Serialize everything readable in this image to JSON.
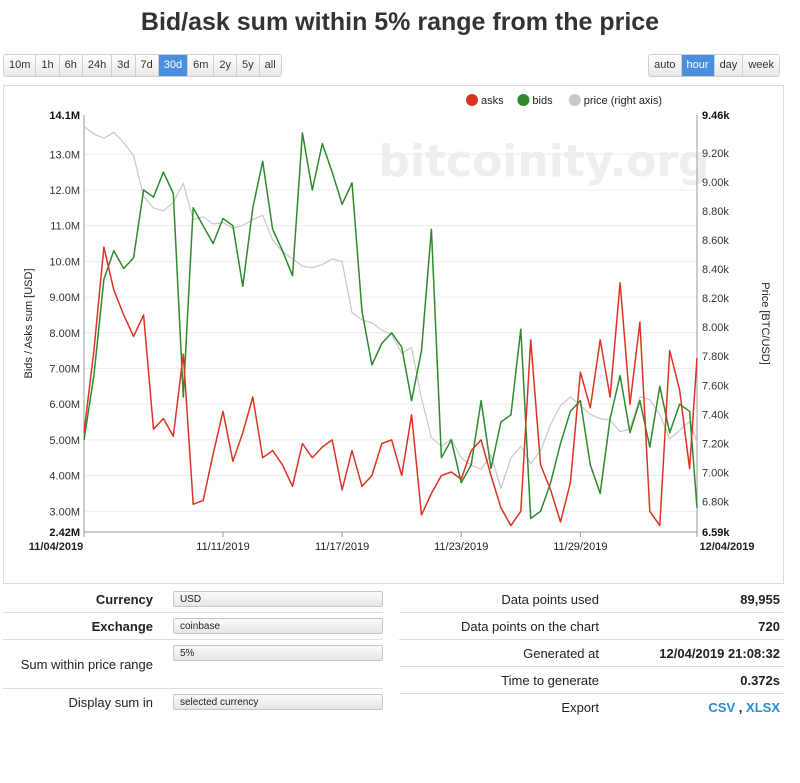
{
  "page": {
    "title": "Bid/ask sum within 5% range from the price"
  },
  "range_buttons": [
    {
      "label": "10m",
      "active": false
    },
    {
      "label": "1h",
      "active": false
    },
    {
      "label": "6h",
      "active": false
    },
    {
      "label": "24h",
      "active": false
    },
    {
      "label": "3d",
      "active": false
    },
    {
      "label": "7d",
      "active": false
    },
    {
      "label": "30d",
      "active": true
    },
    {
      "label": "6m",
      "active": false
    },
    {
      "label": "2y",
      "active": false
    },
    {
      "label": "5y",
      "active": false
    },
    {
      "label": "all",
      "active": false
    }
  ],
  "grouping_buttons": [
    {
      "label": "auto",
      "active": false
    },
    {
      "label": "hour",
      "active": true
    },
    {
      "label": "day",
      "active": false
    },
    {
      "label": "week",
      "active": false
    }
  ],
  "chart_data": {
    "type": "line",
    "watermark": "bitcoinity.org",
    "ylabel_left": "Bids / Asks sum [USD]",
    "ylabel_right": "Price [BTC/USD]",
    "left_axis": {
      "min": 2420000,
      "max": 14100000,
      "ticks": [
        3000000,
        4000000,
        5000000,
        6000000,
        7000000,
        8000000,
        9000000,
        10000000,
        11000000,
        12000000,
        13000000
      ],
      "tick_labels": [
        "3.00M",
        "4.00M",
        "5.00M",
        "6.00M",
        "7.00M",
        "8.00M",
        "9.00M",
        "10.0M",
        "11.0M",
        "12.0M",
        "13.0M"
      ],
      "min_label": "2.42M",
      "max_label": "14.1M"
    },
    "right_axis": {
      "min": 6590,
      "max": 9460,
      "ticks": [
        6800,
        7000,
        7200,
        7400,
        7600,
        7800,
        8000,
        8200,
        8400,
        8600,
        8800,
        9000,
        9200
      ],
      "tick_labels": [
        "6.80k",
        "7.00k",
        "7.20k",
        "7.40k",
        "7.60k",
        "7.80k",
        "8.00k",
        "8.20k",
        "8.40k",
        "8.60k",
        "8.80k",
        "9.00k",
        "9.20k"
      ],
      "min_label": "6.59k",
      "max_label": "9.46k"
    },
    "x_axis": {
      "start": "2019-11-04T00:00",
      "end": "2019-12-04T21:00",
      "tick_labels": [
        "11/04/2019",
        "11/11/2019",
        "11/17/2019",
        "11/23/2019",
        "11/29/2019",
        "12/04/2019"
      ],
      "tick_days": [
        0,
        7,
        13,
        19,
        25,
        30.875
      ]
    },
    "legend": {
      "position": "top-right"
    },
    "series": [
      {
        "name": "asks",
        "color": "#dd3322",
        "axis": "left",
        "unit": "M USD",
        "t_days": [
          0,
          0.5,
          1,
          1.5,
          2,
          2.5,
          3,
          3.5,
          4,
          4.5,
          5,
          5.5,
          6,
          6.5,
          7,
          7.5,
          8,
          8.5,
          9,
          9.5,
          10,
          10.5,
          11,
          11.5,
          12,
          12.5,
          13,
          13.5,
          14,
          14.5,
          15,
          15.5,
          16,
          16.5,
          17,
          17.5,
          18,
          18.5,
          19,
          19.5,
          20,
          20.5,
          21,
          21.5,
          22,
          22.5,
          23,
          23.5,
          24,
          24.5,
          25,
          25.5,
          26,
          26.5,
          27,
          27.5,
          28,
          28.5,
          29,
          29.5,
          30,
          30.5,
          30.875
        ],
        "values": [
          5.2,
          7.5,
          10.4,
          9.2,
          8.5,
          7.9,
          8.5,
          5.3,
          5.6,
          5.1,
          7.4,
          3.2,
          3.3,
          4.6,
          5.8,
          4.4,
          5.2,
          6.2,
          4.5,
          4.7,
          4.3,
          3.7,
          4.9,
          4.5,
          4.8,
          5.0,
          3.6,
          4.7,
          3.7,
          4.0,
          4.9,
          5.0,
          4.0,
          5.7,
          2.9,
          3.5,
          4.0,
          4.1,
          3.9,
          4.7,
          5.0,
          4.0,
          3.1,
          2.6,
          3.0,
          7.8,
          4.3,
          3.6,
          2.7,
          3.8,
          6.9,
          5.9,
          7.8,
          6.2,
          9.4,
          6.0,
          8.3,
          3.0,
          2.6,
          7.5,
          6.4,
          4.2,
          7.3
        ]
      },
      {
        "name": "bids",
        "color": "#2d8a2d",
        "axis": "left",
        "unit": "M USD",
        "t_days": [
          0,
          0.5,
          1,
          1.5,
          2,
          2.5,
          3,
          3.5,
          4,
          4.5,
          5,
          5.5,
          6,
          6.5,
          7,
          7.5,
          8,
          8.5,
          9,
          9.5,
          10,
          10.5,
          11,
          11.5,
          12,
          12.5,
          13,
          13.5,
          14,
          14.5,
          15,
          15.5,
          16,
          16.5,
          17,
          17.5,
          18,
          18.5,
          19,
          19.5,
          20,
          20.5,
          21,
          21.5,
          22,
          22.5,
          23,
          23.5,
          24,
          24.5,
          25,
          25.5,
          26,
          26.5,
          27,
          27.5,
          28,
          28.5,
          29,
          29.5,
          30,
          30.5,
          30.875
        ],
        "values": [
          5.0,
          6.8,
          9.5,
          10.3,
          9.8,
          10.1,
          12.0,
          11.8,
          12.5,
          11.9,
          6.2,
          11.5,
          11.0,
          10.5,
          11.2,
          11.0,
          9.3,
          11.5,
          12.8,
          10.9,
          10.3,
          9.6,
          13.6,
          12.0,
          13.3,
          12.5,
          11.6,
          12.2,
          8.6,
          7.1,
          7.7,
          8.0,
          7.6,
          6.1,
          7.5,
          10.9,
          4.5,
          5.0,
          3.8,
          4.3,
          6.1,
          4.2,
          5.5,
          5.7,
          8.1,
          2.8,
          3.0,
          3.8,
          4.9,
          5.8,
          6.1,
          4.3,
          3.5,
          5.6,
          6.8,
          5.2,
          6.1,
          4.8,
          6.5,
          5.2,
          6.0,
          5.8,
          3.1
        ]
      },
      {
        "name": "price (right axis)",
        "color": "#c8c8c8",
        "axis": "right",
        "unit": "USD",
        "t_days": [
          0,
          0.5,
          1,
          1.5,
          2,
          2.5,
          3,
          3.5,
          4,
          4.5,
          5,
          5.5,
          6,
          6.5,
          7,
          7.5,
          8,
          8.5,
          9,
          9.5,
          10,
          10.5,
          11,
          11.5,
          12,
          12.5,
          13,
          13.5,
          14,
          14.5,
          15,
          15.5,
          16,
          16.5,
          17,
          17.5,
          18,
          18.5,
          19,
          19.5,
          20,
          20.5,
          21,
          21.5,
          22,
          22.5,
          23,
          23.5,
          24,
          24.5,
          25,
          25.5,
          26,
          26.5,
          27,
          27.5,
          28,
          28.5,
          29,
          29.5,
          30,
          30.5,
          30.875
        ],
        "values": [
          9380,
          9330,
          9300,
          9340,
          9270,
          9180,
          8900,
          8820,
          8800,
          8860,
          8990,
          8740,
          8760,
          8710,
          8720,
          8680,
          8700,
          8740,
          8770,
          8600,
          8520,
          8470,
          8420,
          8410,
          8430,
          8470,
          8450,
          8100,
          8050,
          8030,
          7980,
          7950,
          7820,
          7860,
          7510,
          7240,
          7180,
          7230,
          7100,
          7050,
          7020,
          7120,
          6890,
          7100,
          7180,
          7060,
          7150,
          7330,
          7460,
          7520,
          7460,
          7400,
          7370,
          7360,
          7280,
          7300,
          7520,
          7500,
          7400,
          7230,
          7290,
          7350,
          7210
        ]
      }
    ]
  },
  "settings": {
    "currency_label": "Currency",
    "currency_value": "USD",
    "exchange_label": "Exchange",
    "exchange_value": "coinbase",
    "range_label": "Sum within price range",
    "range_value": "5%",
    "display_label": "Display sum in",
    "display_value": "selected currency"
  },
  "stats": {
    "used_label": "Data points used",
    "used_value": "89,955",
    "chart_label": "Data points on the chart",
    "chart_value": "720",
    "generated_label": "Generated at",
    "generated_value": "12/04/2019 21:08:32",
    "time_label": "Time to generate",
    "time_value": "0.372s",
    "export_label": "Export",
    "export_csv": "CSV",
    "export_sep": ",",
    "export_xlsx": "XLSX"
  }
}
